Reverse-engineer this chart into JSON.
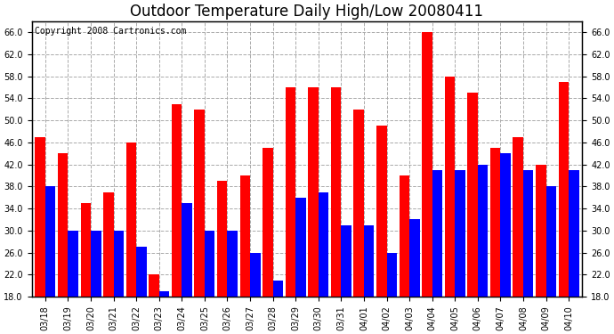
{
  "title": "Outdoor Temperature Daily High/Low 20080411",
  "copyright": "Copyright 2008 Cartronics.com",
  "dates": [
    "03/18",
    "03/19",
    "03/20",
    "03/21",
    "03/22",
    "03/23",
    "03/24",
    "03/25",
    "03/26",
    "03/27",
    "03/28",
    "03/29",
    "03/30",
    "03/31",
    "04/01",
    "04/02",
    "04/03",
    "04/04",
    "04/05",
    "04/06",
    "04/07",
    "04/08",
    "04/09",
    "04/10"
  ],
  "highs": [
    47,
    44,
    35,
    37,
    46,
    22,
    53,
    52,
    39,
    40,
    45,
    56,
    56,
    56,
    52,
    49,
    40,
    66,
    58,
    55,
    45,
    47,
    42,
    57
  ],
  "lows": [
    38,
    30,
    30,
    30,
    27,
    19,
    35,
    30,
    30,
    26,
    21,
    36,
    37,
    31,
    31,
    26,
    32,
    41,
    41,
    42,
    44,
    41,
    38,
    41
  ],
  "high_color": "#ff0000",
  "low_color": "#0000ff",
  "bar_width": 0.45,
  "ymin": 18,
  "ymax": 68,
  "yticks": [
    18.0,
    22.0,
    26.0,
    30.0,
    34.0,
    38.0,
    42.0,
    46.0,
    50.0,
    54.0,
    58.0,
    62.0,
    66.0
  ],
  "bg_color": "#ffffff",
  "grid_color": "#aaaaaa",
  "title_fontsize": 12,
  "tick_fontsize": 7,
  "copyright_fontsize": 7
}
